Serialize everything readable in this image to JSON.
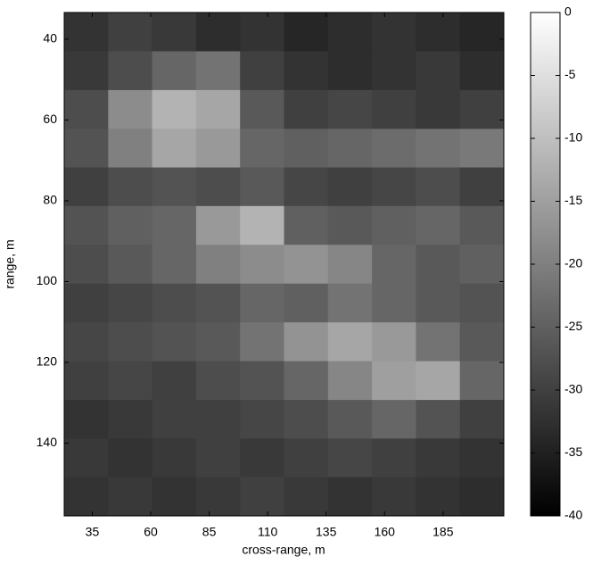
{
  "chart_data": {
    "type": "heatmap",
    "xlabel": "cross-range, m",
    "ylabel": "range, m",
    "x": [
      32.4,
      51.2,
      70,
      88.8,
      107.6,
      126.4,
      145.2,
      164,
      182.8,
      201.6
    ],
    "y": [
      38.2,
      47.8,
      57.4,
      67,
      76.5,
      86.1,
      95.7,
      105.3,
      114.9,
      124.5,
      134.1,
      143.6,
      153.2
    ],
    "z": [
      [
        -32,
        -30,
        -31,
        -33,
        -32,
        -34,
        -33,
        -32,
        -33,
        -34
      ],
      [
        -31,
        -28,
        -24,
        -22,
        -30,
        -32,
        -33,
        -32,
        -31,
        -33
      ],
      [
        -28,
        -18,
        -12,
        -14,
        -26,
        -30,
        -29,
        -30,
        -31,
        -30
      ],
      [
        -27,
        -20,
        -14,
        -16,
        -24,
        -25,
        -24,
        -23,
        -22,
        -21
      ],
      [
        -30,
        -28,
        -27,
        -28,
        -26,
        -29,
        -30,
        -29,
        -28,
        -30
      ],
      [
        -27,
        -25,
        -24,
        -16,
        -12,
        -25,
        -26,
        -25,
        -24,
        -26
      ],
      [
        -28,
        -26,
        -24,
        -20,
        -18,
        -17,
        -19,
        -24,
        -26,
        -25
      ],
      [
        -30,
        -29,
        -28,
        -27,
        -24,
        -25,
        -22,
        -24,
        -26,
        -27
      ],
      [
        -29,
        -28,
        -27,
        -26,
        -22,
        -17,
        -14,
        -16,
        -22,
        -26
      ],
      [
        -30,
        -29,
        -30,
        -28,
        -27,
        -24,
        -19,
        -15,
        -14,
        -24
      ],
      [
        -32,
        -31,
        -30,
        -30,
        -29,
        -28,
        -26,
        -24,
        -27,
        -30
      ],
      [
        -31,
        -32,
        -31,
        -30,
        -31,
        -30,
        -29,
        -30,
        -31,
        -32
      ],
      [
        -32,
        -31,
        -32,
        -31,
        -30,
        -31,
        -32,
        -31,
        -32,
        -33
      ]
    ],
    "xlim": [
      23,
      211
    ],
    "xticks": [
      35,
      60,
      85,
      110,
      135,
      160,
      185
    ],
    "ylim": [
      33.4,
      158
    ],
    "yticks": [
      40,
      60,
      80,
      100,
      120,
      140
    ],
    "y_direction": "reverse",
    "colormap": "gray",
    "colorbar": {
      "lim": [
        -40,
        0
      ],
      "ticks": [
        0,
        -5,
        -10,
        -15,
        -20,
        -25,
        -30,
        -35,
        -40
      ]
    }
  }
}
